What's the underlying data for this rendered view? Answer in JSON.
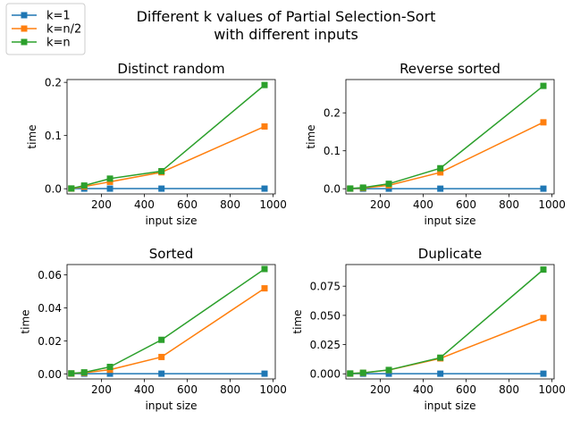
{
  "figure": {
    "suptitle_line1": "Different k values of Partial Selection-Sort",
    "suptitle_line2": "with different inputs"
  },
  "legend": {
    "placement": "top-left",
    "entries": [
      {
        "label": "k=1",
        "color": "#1f77b4"
      },
      {
        "label": "k=n/2",
        "color": "#ff7f0e"
      },
      {
        "label": "k=n",
        "color": "#2ca02c"
      }
    ]
  },
  "chart_data": [
    {
      "type": "line",
      "title": "Distinct random",
      "xlabel": "input size",
      "ylabel": "time",
      "xlim": [
        40,
        1010
      ],
      "ylim": [
        -0.0098,
        0.2053
      ],
      "xticks": [
        200,
        400,
        600,
        800,
        1000
      ],
      "xticklabels": [
        "200",
        "400",
        "600",
        "800",
        "1000"
      ],
      "yticks": [
        0.0,
        0.1,
        0.2
      ],
      "yticklabels": [
        "0.0",
        "0.1",
        "0.2"
      ],
      "x": [
        60,
        120,
        240,
        480,
        960
      ],
      "series": [
        {
          "name": "k=1",
          "color": "#1f77b4",
          "values": [
            0.0002,
            0.0002,
            0.0002,
            0.0002,
            0.0002
          ]
        },
        {
          "name": "k=n/2",
          "color": "#ff7f0e",
          "values": [
            0.0003,
            0.004,
            0.013,
            0.031,
            0.117
          ]
        },
        {
          "name": "k=n",
          "color": "#2ca02c",
          "values": [
            0.0005,
            0.006,
            0.019,
            0.033,
            0.195
          ]
        }
      ]
    },
    {
      "type": "line",
      "title": "Reverse sorted",
      "xlabel": "input size",
      "ylabel": "time",
      "xlim": [
        40,
        1010
      ],
      "ylim": [
        -0.0137,
        0.2877
      ],
      "xticks": [
        200,
        400,
        600,
        800,
        1000
      ],
      "xticklabels": [
        "200",
        "400",
        "600",
        "800",
        "1000"
      ],
      "yticks": [
        0.0,
        0.1,
        0.2
      ],
      "yticklabels": [
        "0.0",
        "0.1",
        "0.2"
      ],
      "x": [
        60,
        120,
        240,
        480,
        960
      ],
      "series": [
        {
          "name": "k=1",
          "color": "#1f77b4",
          "values": [
            0.0002,
            0.0002,
            0.0002,
            0.0002,
            0.0002
          ]
        },
        {
          "name": "k=n/2",
          "color": "#ff7f0e",
          "values": [
            0.0004,
            0.002,
            0.009,
            0.043,
            0.175
          ]
        },
        {
          "name": "k=n",
          "color": "#2ca02c",
          "values": [
            0.0006,
            0.003,
            0.013,
            0.054,
            0.271
          ]
        }
      ]
    },
    {
      "type": "line",
      "title": "Sorted",
      "xlabel": "input size",
      "ylabel": "time",
      "xlim": [
        40,
        1010
      ],
      "ylim": [
        -0.0031,
        0.0662
      ],
      "xticks": [
        200,
        400,
        600,
        800,
        1000
      ],
      "xticklabels": [
        "200",
        "400",
        "600",
        "800",
        "1000"
      ],
      "yticks": [
        0.0,
        0.02,
        0.04,
        0.06
      ],
      "yticklabels": [
        "0.00",
        "0.02",
        "0.04",
        "0.06"
      ],
      "x": [
        60,
        120,
        240,
        480,
        960
      ],
      "series": [
        {
          "name": "k=1",
          "color": "#1f77b4",
          "values": [
            0.0001,
            0.0001,
            0.0001,
            0.0001,
            0.0001
          ]
        },
        {
          "name": "k=n/2",
          "color": "#ff7f0e",
          "values": [
            0.0002,
            0.0006,
            0.0025,
            0.0102,
            0.0518
          ]
        },
        {
          "name": "k=n",
          "color": "#2ca02c",
          "values": [
            0.0003,
            0.0009,
            0.0042,
            0.0206,
            0.0635
          ]
        }
      ]
    },
    {
      "type": "line",
      "title": "Duplicate",
      "xlabel": "input size",
      "ylabel": "time",
      "xlim": [
        40,
        1010
      ],
      "ylim": [
        -0.0044,
        0.0935
      ],
      "xticks": [
        200,
        400,
        600,
        800,
        1000
      ],
      "xticklabels": [
        "200",
        "400",
        "600",
        "800",
        "1000"
      ],
      "yticks": [
        0.0,
        0.025,
        0.05,
        0.075
      ],
      "yticklabels": [
        "0.000",
        "0.025",
        "0.050",
        "0.075"
      ],
      "x": [
        60,
        120,
        240,
        480,
        960
      ],
      "series": [
        {
          "name": "k=1",
          "color": "#1f77b4",
          "values": [
            0.0001,
            0.0001,
            0.0001,
            0.0001,
            0.0001
          ]
        },
        {
          "name": "k=n/2",
          "color": "#ff7f0e",
          "values": [
            0.0002,
            0.0008,
            0.0032,
            0.0132,
            0.0478
          ]
        },
        {
          "name": "k=n",
          "color": "#2ca02c",
          "values": [
            0.0003,
            0.0009,
            0.0033,
            0.0138,
            0.0892
          ]
        }
      ]
    }
  ]
}
